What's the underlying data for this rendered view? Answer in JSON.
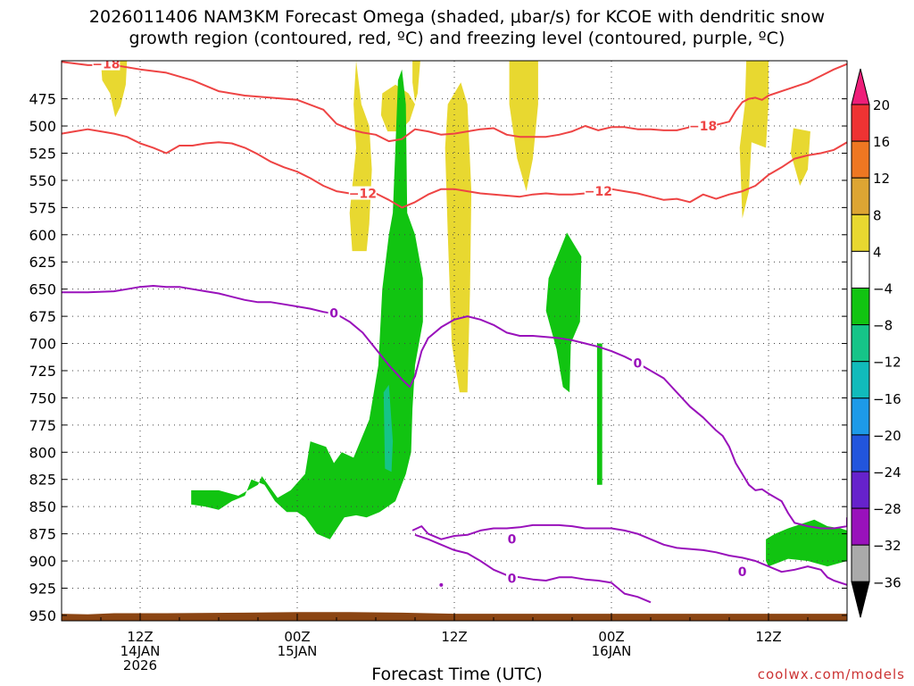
{
  "title_line1": "2026011406 NAM3KM Forecast Omega (shaded, μbar/s) for KCOE with dendritic snow",
  "title_line2": "growth region (contoured, red, ºC) and freezing level (contoured, purple, ºC)",
  "xlabel": "Forecast Time (UTC)",
  "credit": "coolwx.com/models",
  "chart_data": {
    "type": "heatmap",
    "y_axis": {
      "label": "",
      "ticks": [
        475,
        500,
        525,
        550,
        575,
        600,
        625,
        650,
        675,
        700,
        725,
        750,
        775,
        800,
        825,
        850,
        875,
        900,
        925,
        950
      ],
      "range_hPa": [
        440,
        955
      ]
    },
    "x_axis": {
      "range_hours": [
        0,
        60
      ],
      "ticks": [
        {
          "hour": 6,
          "label": "12Z",
          "date": "14JAN",
          "year": "2026"
        },
        {
          "hour": 18,
          "label": "00Z",
          "date": "15JAN",
          "year": ""
        },
        {
          "hour": 30,
          "label": "12Z",
          "date": "",
          "year": ""
        },
        {
          "hour": 42,
          "label": "00Z",
          "date": "16JAN",
          "year": ""
        },
        {
          "hour": 54,
          "label": "12Z",
          "date": "",
          "year": ""
        }
      ],
      "grid": true
    },
    "colorbar": {
      "labels": [
        "20",
        "16",
        "12",
        "8",
        "4",
        "−4",
        "−8",
        "−12",
        "−16",
        "−20",
        "−24",
        "−28",
        "−32",
        "−36"
      ],
      "colors": [
        "#ee1e79",
        "#ee3333",
        "#ee7722",
        "#dda533",
        "#e8d830",
        "#ffffff",
        "#11c411",
        "#16c488",
        "#11bbbb",
        "#1d9ae8",
        "#2255dd",
        "#6622cc",
        "#9911bb",
        "#aaaaaa",
        "#000000"
      ]
    },
    "contours": {
      "dgz_top_label": "−18",
      "dgz_bottom_label": "−12",
      "freezing_label": "0",
      "dgz_color": "#ee4444",
      "freezing_color": "#9911bb"
    },
    "terrain_color": "#8b4513"
  }
}
